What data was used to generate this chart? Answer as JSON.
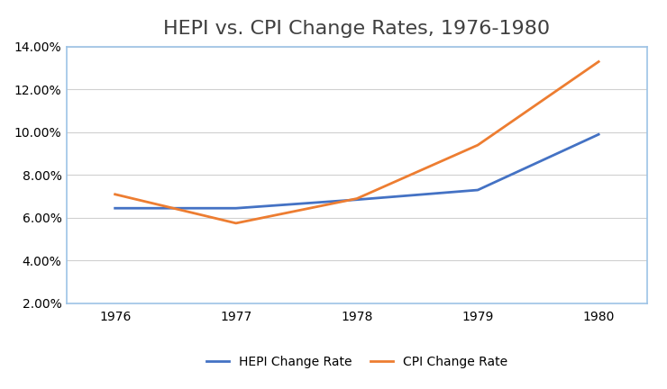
{
  "title": "HEPI vs. CPI Change Rates, 1976-1980",
  "years": [
    1976,
    1977,
    1978,
    1979,
    1980
  ],
  "hepi": [
    0.0645,
    0.0645,
    0.0685,
    0.073,
    0.099
  ],
  "cpi": [
    0.071,
    0.0575,
    0.069,
    0.094,
    0.133
  ],
  "hepi_color": "#4472C4",
  "cpi_color": "#ED7D31",
  "hepi_label": "HEPI Change Rate",
  "cpi_label": "CPI Change Rate",
  "ylim_min": 0.02,
  "ylim_max": 0.14,
  "yticks": [
    0.02,
    0.04,
    0.06,
    0.08,
    0.1,
    0.12,
    0.14
  ],
  "background_color": "#ffffff",
  "plot_bg_color": "#ffffff",
  "grid_color": "#d0d0d0",
  "spine_color": "#9DC3E6",
  "title_fontsize": 16,
  "tick_fontsize": 10,
  "legend_fontsize": 10,
  "line_width": 2.0,
  "title_color": "#404040"
}
